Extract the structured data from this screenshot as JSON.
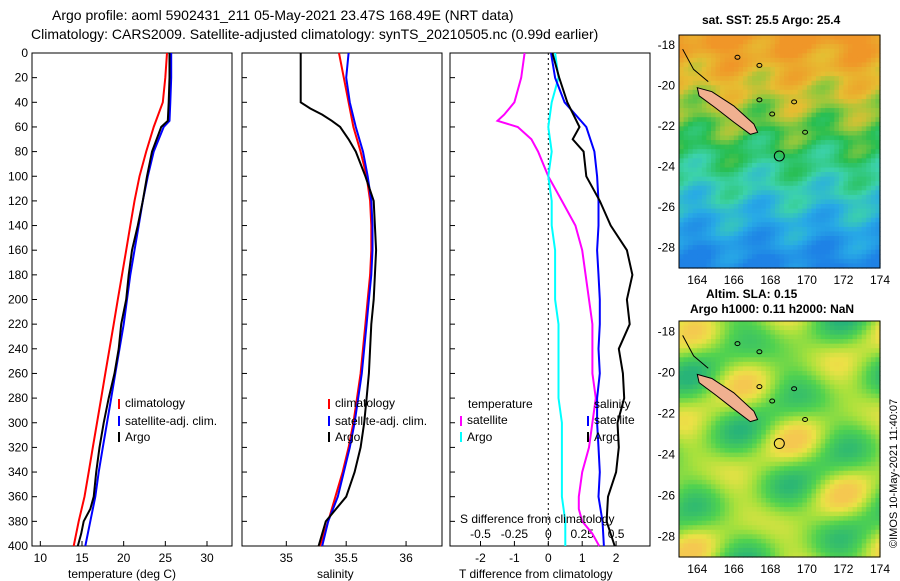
{
  "header": {
    "line1": "Argo profile: aoml 5902431_211 05-May-2021 23.47S 168.49E (NRT data)",
    "line2": "Climatology: CARS2009. Satellite-adjusted climatology: synTS_20210505.nc (0.99d earlier)"
  },
  "colors": {
    "climatology": "#ff0000",
    "satellite": "#0000ff",
    "argo": "#000000",
    "t_diff": "#ff00ff",
    "s_diff": "#00ffff"
  },
  "chart_data": [
    {
      "type": "line",
      "name": "temperature",
      "xlabel": "temperature (deg C)",
      "xlim": [
        9,
        33
      ],
      "xticks": [
        10,
        15,
        20,
        25,
        30
      ],
      "ylim": [
        0,
        400
      ],
      "yticks": [
        0,
        20,
        40,
        60,
        80,
        100,
        120,
        140,
        160,
        180,
        200,
        220,
        240,
        260,
        280,
        300,
        320,
        340,
        360,
        380,
        400
      ],
      "legend": [
        "climatology",
        "satellite-adj. clim.",
        "Argo"
      ],
      "series": [
        {
          "name": "climatology",
          "color": "#ff0000",
          "depth": [
            0,
            20,
            40,
            60,
            80,
            100,
            120,
            140,
            160,
            180,
            200,
            220,
            240,
            260,
            280,
            300,
            320,
            340,
            360,
            380,
            400
          ],
          "values": [
            25.2,
            25.0,
            24.7,
            23.6,
            22.7,
            21.9,
            21.3,
            20.8,
            20.3,
            19.8,
            19.3,
            18.8,
            18.3,
            17.8,
            17.3,
            16.8,
            16.3,
            15.8,
            15.3,
            14.6,
            14.0
          ]
        },
        {
          "name": "satellite",
          "color": "#0000ff",
          "depth": [
            0,
            20,
            40,
            55,
            60,
            80,
            100,
            120,
            140,
            160,
            180,
            200,
            220,
            240,
            260,
            280,
            300,
            320,
            340,
            360,
            380,
            400
          ],
          "values": [
            25.7,
            25.7,
            25.6,
            25.5,
            24.8,
            23.6,
            22.9,
            22.3,
            21.8,
            21.3,
            20.8,
            20.4,
            20.0,
            19.5,
            19.0,
            18.5,
            18.0,
            17.5,
            17.0,
            16.6,
            16.0,
            15.4
          ]
        },
        {
          "name": "Argo",
          "color": "#000000",
          "depth": [
            0,
            20,
            40,
            55,
            60,
            80,
            100,
            120,
            140,
            160,
            180,
            200,
            220,
            240,
            260,
            280,
            300,
            320,
            340,
            360,
            370,
            380,
            390,
            400
          ],
          "values": [
            25.5,
            25.5,
            25.4,
            25.3,
            24.5,
            23.4,
            22.8,
            22.3,
            21.7,
            21.0,
            20.6,
            20.3,
            19.7,
            19.4,
            18.9,
            18.2,
            17.6,
            17.1,
            16.7,
            16.4,
            16.0,
            15.2,
            14.9,
            14.5
          ]
        }
      ]
    },
    {
      "type": "line",
      "name": "salinity",
      "xlabel": "salinity",
      "xlim": [
        34.63,
        36.3
      ],
      "xticks": [
        35,
        35.5,
        36
      ],
      "ylim": [
        0,
        400
      ],
      "legend": [
        "climatology",
        "satellite-adj. clim.",
        "Argo"
      ],
      "series": [
        {
          "name": "climatology",
          "color": "#ff0000",
          "depth": [
            0,
            20,
            40,
            60,
            80,
            100,
            120,
            140,
            160,
            180,
            200,
            220,
            240,
            260,
            280,
            300,
            320,
            340,
            360,
            380,
            400
          ],
          "values": [
            35.44,
            35.48,
            35.52,
            35.56,
            35.62,
            35.67,
            35.7,
            35.71,
            35.71,
            35.7,
            35.68,
            35.66,
            35.64,
            35.62,
            35.59,
            35.56,
            35.52,
            35.47,
            35.41,
            35.35,
            35.28
          ]
        },
        {
          "name": "satellite",
          "color": "#0000ff",
          "depth": [
            0,
            20,
            40,
            60,
            80,
            100,
            120,
            140,
            160,
            180,
            200,
            220,
            240,
            260,
            280,
            300,
            320,
            340,
            360,
            380,
            400
          ],
          "values": [
            35.52,
            35.5,
            35.53,
            35.58,
            35.64,
            35.68,
            35.71,
            35.72,
            35.72,
            35.71,
            35.69,
            35.67,
            35.65,
            35.63,
            35.6,
            35.57,
            35.53,
            35.48,
            35.43,
            35.35,
            35.3
          ]
        },
        {
          "name": "Argo",
          "color": "#000000",
          "depth": [
            0,
            20,
            40,
            45,
            50,
            55,
            60,
            70,
            80,
            100,
            120,
            140,
            160,
            180,
            200,
            220,
            240,
            260,
            280,
            300,
            320,
            340,
            360,
            380,
            390,
            400
          ],
          "values": [
            35.12,
            35.12,
            35.12,
            35.2,
            35.3,
            35.38,
            35.45,
            35.52,
            35.58,
            35.66,
            35.73,
            35.74,
            35.75,
            35.74,
            35.73,
            35.71,
            35.7,
            35.69,
            35.67,
            35.65,
            35.62,
            35.57,
            35.5,
            35.33,
            35.3,
            35.27
          ]
        }
      ]
    },
    {
      "type": "line",
      "name": "differences",
      "xlabel": "T difference from climatology",
      "xlabel_top": "S difference from climatology",
      "xlim": [
        -2.9,
        3.0
      ],
      "xticks_bottom": [
        -2,
        -1,
        0,
        1,
        2
      ],
      "xticks_top": [
        "-0.5",
        "-0.25",
        "0",
        "0.25",
        "0.5"
      ],
      "ylim": [
        0,
        400
      ],
      "legend_left_title": "temperature",
      "legend_right_title": "salinity",
      "legend_items": [
        "satellite",
        "Argo"
      ],
      "series": [
        {
          "name": "T satellite",
          "color": "#ff00ff",
          "depth": [
            0,
            20,
            40,
            50,
            55,
            60,
            70,
            80,
            100,
            120,
            140,
            160,
            180,
            200,
            220,
            240,
            260,
            280,
            300,
            320,
            340,
            360,
            370,
            380,
            390,
            400
          ],
          "values": [
            -0.7,
            -0.8,
            -1.0,
            -1.3,
            -1.5,
            -0.9,
            -0.5,
            -0.3,
            0.0,
            0.4,
            0.8,
            1.0,
            1.1,
            1.2,
            1.3,
            1.3,
            1.3,
            1.4,
            1.3,
            1.2,
            1.0,
            0.9,
            0.9,
            1.0,
            1.3,
            1.5
          ]
        },
        {
          "name": "T Argo",
          "color": "#00ffff",
          "depth": [
            0,
            20,
            40,
            60,
            80,
            100,
            120,
            140,
            160,
            180,
            200,
            220,
            240,
            260,
            280,
            300,
            320,
            340,
            360,
            380,
            400
          ],
          "values": [
            0.2,
            0.3,
            0.1,
            0.0,
            0.1,
            0.0,
            0.1,
            0.1,
            0.2,
            0.2,
            0.2,
            0.3,
            0.3,
            0.3,
            0.3,
            0.4,
            0.4,
            0.4,
            0.4,
            0.5,
            0.5
          ]
        },
        {
          "name": "S satellite",
          "color": "#0000ff",
          "depth": [
            0,
            20,
            40,
            60,
            80,
            100,
            120,
            140,
            160,
            180,
            200,
            220,
            240,
            260,
            280,
            300,
            320,
            340,
            360,
            380,
            400
          ],
          "values": [
            0.02,
            0.05,
            0.12,
            0.28,
            0.34,
            0.36,
            0.37,
            0.37,
            0.36,
            0.37,
            0.38,
            0.38,
            0.37,
            0.38,
            0.36,
            0.36,
            0.37,
            0.38,
            0.37,
            0.4,
            0.41
          ]
        },
        {
          "name": "S Argo",
          "color": "#000000",
          "depth": [
            0,
            20,
            40,
            60,
            70,
            80,
            100,
            120,
            140,
            160,
            180,
            200,
            220,
            240,
            260,
            280,
            300,
            320,
            340,
            360,
            380,
            400
          ],
          "values": [
            0.03,
            0.08,
            0.14,
            0.23,
            0.18,
            0.26,
            0.28,
            0.38,
            0.46,
            0.58,
            0.62,
            0.58,
            0.6,
            0.52,
            0.55,
            0.56,
            0.51,
            0.52,
            0.5,
            0.44,
            0.43,
            0.49
          ]
        }
      ]
    }
  ],
  "maps": {
    "sst_title": "sat. SST: 25.5 Argo: 25.4",
    "sla_title_1": "Altim. SLA: 0.15",
    "sla_title_2": "Argo h1000: 0.11 h2000: NaN",
    "lat_ticks": [
      "-18",
      "-20",
      "-22",
      "-24",
      "-26",
      "-28"
    ],
    "lon_ticks": [
      "164",
      "166",
      "168",
      "170",
      "172",
      "174"
    ],
    "credit": "©IMOS 10-May-2021 11:40:07"
  }
}
